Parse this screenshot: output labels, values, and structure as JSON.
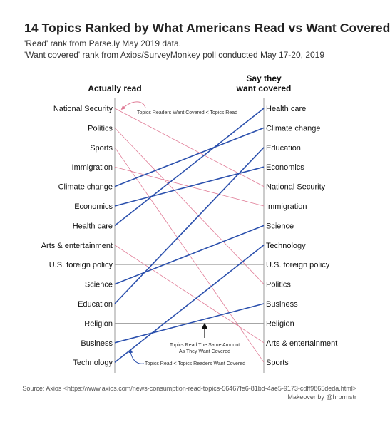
{
  "title": "14 Topics Ranked by What Americans Read vs Want Covered",
  "subtitle_1": "'Read' rank from Parse.ly May 2019 data.",
  "subtitle_2": "'Want covered' rank from Axios/SurveyMonkey poll conducted May 17-20, 2019",
  "source_line": "Source: Axios <https://www.axios.com/news-consumption-read-topics-56467fe6-81bd-4ae5-9173-cdff9865deda.html>",
  "credit_line": "Makeover by @hrbrmstr",
  "chart_data": {
    "type": "slope",
    "left_header": "Actually read",
    "right_header_1": "Say they",
    "right_header_2": "want covered",
    "colors": {
      "want_more": "#2b50ad",
      "want_less": "#e07a95",
      "same": "#999999",
      "axis": "#999999"
    },
    "topics": [
      {
        "topic": "National Security",
        "read_rank": 1,
        "want_rank": 5
      },
      {
        "topic": "Politics",
        "read_rank": 2,
        "want_rank": 10
      },
      {
        "topic": "Sports",
        "read_rank": 3,
        "want_rank": 14
      },
      {
        "topic": "Immigration",
        "read_rank": 4,
        "want_rank": 6
      },
      {
        "topic": "Climate change",
        "read_rank": 5,
        "want_rank": 2
      },
      {
        "topic": "Economics",
        "read_rank": 6,
        "want_rank": 4
      },
      {
        "topic": "Health care",
        "read_rank": 7,
        "want_rank": 1
      },
      {
        "topic": "Arts & entertainment",
        "read_rank": 8,
        "want_rank": 13
      },
      {
        "topic": "U.S. foreign policy",
        "read_rank": 9,
        "want_rank": 9
      },
      {
        "topic": "Science",
        "read_rank": 10,
        "want_rank": 7
      },
      {
        "topic": "Education",
        "read_rank": 11,
        "want_rank": 3
      },
      {
        "topic": "Religion",
        "read_rank": 12,
        "want_rank": 12
      },
      {
        "topic": "Business",
        "read_rank": 13,
        "want_rank": 11
      },
      {
        "topic": "Technology",
        "read_rank": 14,
        "want_rank": 8
      }
    ],
    "annotations": {
      "less": "Topics Readers Want Covered < Topics Read",
      "same_1": "Topics Read The Same Amount",
      "same_2": "As They Want Covered",
      "more": "Topics Read < Topics Readers Want Covered"
    }
  }
}
